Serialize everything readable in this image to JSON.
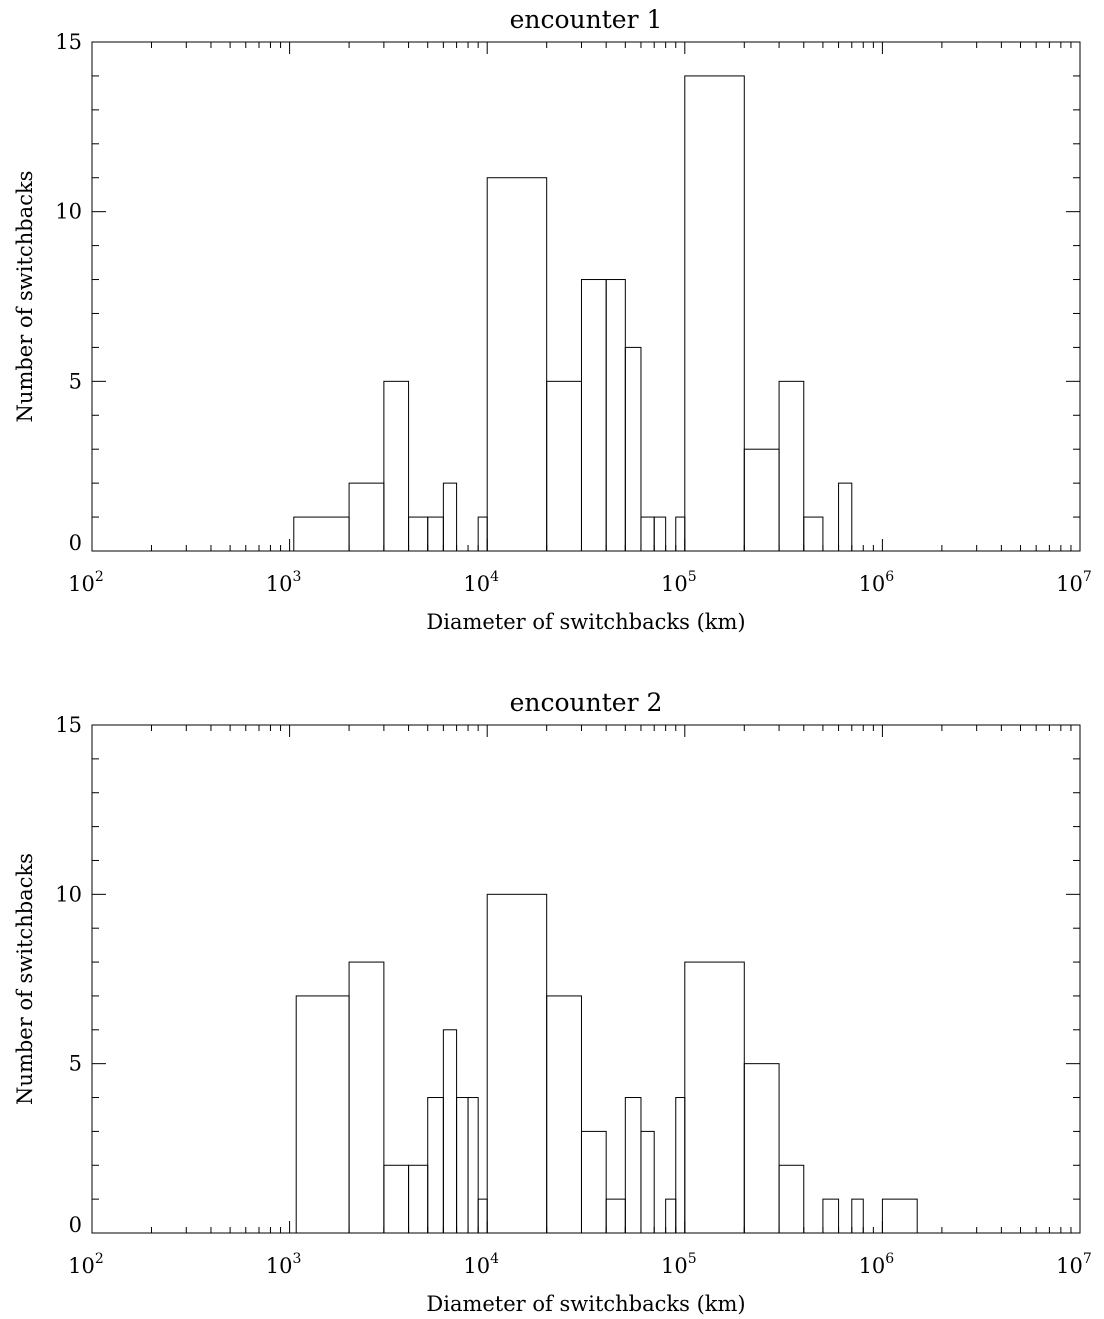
{
  "chart_data": [
    {
      "type": "bar",
      "title": "encounter 1",
      "xlabel": "Diameter of switchbacks (km)",
      "ylabel": "Number of switchbacks",
      "x_scale": "log",
      "xlim": [
        100,
        10000000
      ],
      "ylim": [
        0,
        15
      ],
      "x_ticks": [
        {
          "base": "10",
          "exp": "2"
        },
        {
          "base": "10",
          "exp": "3"
        },
        {
          "base": "10",
          "exp": "4"
        },
        {
          "base": "10",
          "exp": "5"
        },
        {
          "base": "10",
          "exp": "6"
        },
        {
          "base": "10",
          "exp": "7"
        }
      ],
      "y_ticks": [
        "0",
        "5",
        "10",
        "15"
      ],
      "y_tick_values": [
        0,
        5,
        10,
        15
      ],
      "bins": [
        {
          "x0": 1050,
          "x1": 2000,
          "count": 1
        },
        {
          "x0": 2000,
          "x1": 3000,
          "count": 2
        },
        {
          "x0": 3000,
          "x1": 4000,
          "count": 5
        },
        {
          "x0": 4000,
          "x1": 5000,
          "count": 1
        },
        {
          "x0": 5000,
          "x1": 6000,
          "count": 1
        },
        {
          "x0": 6000,
          "x1": 7000,
          "count": 2
        },
        {
          "x0": 9000,
          "x1": 10000,
          "count": 1
        },
        {
          "x0": 10000,
          "x1": 20000,
          "count": 11
        },
        {
          "x0": 20000,
          "x1": 30000,
          "count": 5
        },
        {
          "x0": 30000,
          "x1": 40000,
          "count": 8
        },
        {
          "x0": 40000,
          "x1": 50000,
          "count": 8
        },
        {
          "x0": 50000,
          "x1": 60000,
          "count": 6
        },
        {
          "x0": 60000,
          "x1": 70000,
          "count": 1
        },
        {
          "x0": 70000,
          "x1": 80000,
          "count": 1
        },
        {
          "x0": 90000,
          "x1": 100000,
          "count": 1
        },
        {
          "x0": 100000,
          "x1": 200000,
          "count": 14
        },
        {
          "x0": 200000,
          "x1": 300000,
          "count": 3
        },
        {
          "x0": 300000,
          "x1": 400000,
          "count": 5
        },
        {
          "x0": 400000,
          "x1": 500000,
          "count": 1
        },
        {
          "x0": 600000,
          "x1": 700000,
          "count": 2
        }
      ]
    },
    {
      "type": "bar",
      "title": "encounter 2",
      "xlabel": "Diameter of switchbacks (km)",
      "ylabel": "Number of switchbacks",
      "x_scale": "log",
      "xlim": [
        100,
        10000000
      ],
      "ylim": [
        0,
        15
      ],
      "x_ticks": [
        {
          "base": "10",
          "exp": "2"
        },
        {
          "base": "10",
          "exp": "3"
        },
        {
          "base": "10",
          "exp": "4"
        },
        {
          "base": "10",
          "exp": "5"
        },
        {
          "base": "10",
          "exp": "6"
        },
        {
          "base": "10",
          "exp": "7"
        }
      ],
      "y_ticks": [
        "0",
        "5",
        "10",
        "15"
      ],
      "y_tick_values": [
        0,
        5,
        10,
        15
      ],
      "bins": [
        {
          "x0": 1080,
          "x1": 2000,
          "count": 7
        },
        {
          "x0": 2000,
          "x1": 3000,
          "count": 8
        },
        {
          "x0": 3000,
          "x1": 4000,
          "count": 2
        },
        {
          "x0": 4000,
          "x1": 5000,
          "count": 2
        },
        {
          "x0": 5000,
          "x1": 6000,
          "count": 4
        },
        {
          "x0": 6000,
          "x1": 7000,
          "count": 6
        },
        {
          "x0": 7000,
          "x1": 8000,
          "count": 4
        },
        {
          "x0": 8000,
          "x1": 9000,
          "count": 4
        },
        {
          "x0": 9000,
          "x1": 10000,
          "count": 1
        },
        {
          "x0": 10000,
          "x1": 20000,
          "count": 10
        },
        {
          "x0": 20000,
          "x1": 30000,
          "count": 7
        },
        {
          "x0": 30000,
          "x1": 40000,
          "count": 3
        },
        {
          "x0": 40000,
          "x1": 50000,
          "count": 1
        },
        {
          "x0": 50000,
          "x1": 60000,
          "count": 4
        },
        {
          "x0": 60000,
          "x1": 70000,
          "count": 3
        },
        {
          "x0": 80000,
          "x1": 90000,
          "count": 1
        },
        {
          "x0": 90000,
          "x1": 100000,
          "count": 4
        },
        {
          "x0": 100000,
          "x1": 200000,
          "count": 8
        },
        {
          "x0": 200000,
          "x1": 300000,
          "count": 5
        },
        {
          "x0": 300000,
          "x1": 400000,
          "count": 2
        },
        {
          "x0": 500000,
          "x1": 600000,
          "count": 1
        },
        {
          "x0": 700000,
          "x1": 800000,
          "count": 1
        },
        {
          "x0": 1000000,
          "x1": 1500000,
          "count": 1
        }
      ]
    }
  ]
}
